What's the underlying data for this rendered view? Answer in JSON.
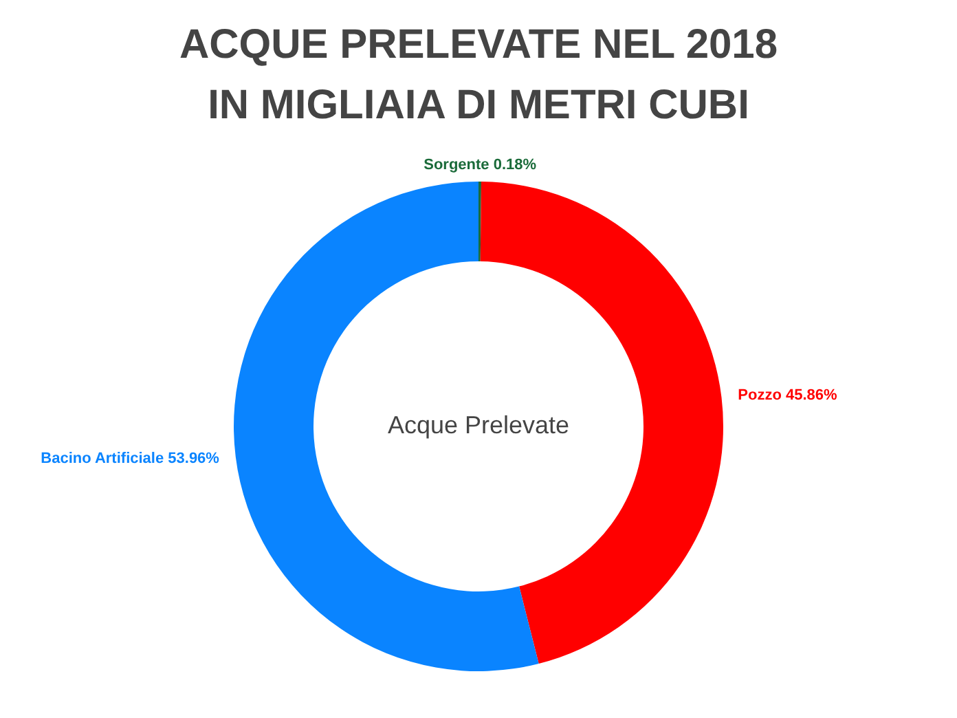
{
  "chart_data": {
    "type": "donut",
    "title": "ACQUE PRELEVATE NEL 2018 IN MIGLIAIA DI METRI CUBI",
    "categories": [
      "Sorgente",
      "Pozzo",
      "Bacino Artificiale"
    ],
    "values": [
      0.18,
      45.86,
      53.96
    ],
    "colors": [
      "#1b6b3a",
      "#ff0000",
      "#0a84ff"
    ],
    "value_labels": [
      "0.18%",
      "45.86%",
      "53.96%"
    ],
    "annotations": [
      "Acque Prelevate"
    ]
  }
}
